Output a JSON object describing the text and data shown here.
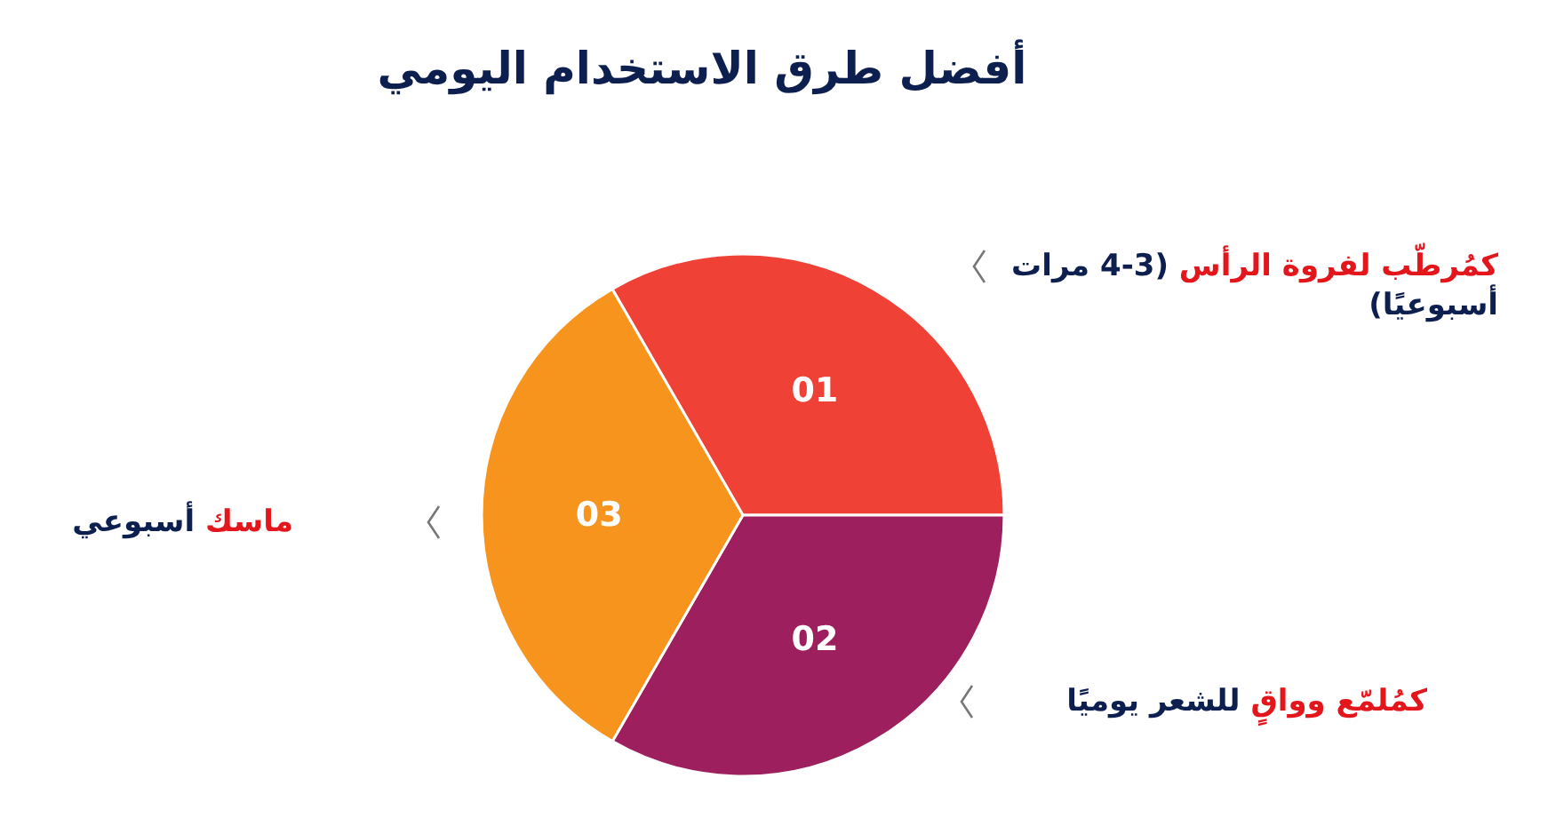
{
  "chart_data": {
    "type": "pie",
    "title": "أفضل طرق الاستخدام اليومي",
    "categories": [
      "01",
      "02",
      "03"
    ],
    "values": [
      33.33,
      33.33,
      33.34
    ],
    "colors": [
      "#ef4136",
      "#9e1f5e",
      "#f7941d"
    ],
    "annotations": [
      {
        "text": "كمُرطّب لفروة الرأس",
        "x": "01"
      },
      {
        "text": "(3-4 مرات أسبوعيًا)",
        "x": "01"
      },
      {
        "text": "كمُلمّع وواقٍ",
        "x": "02"
      },
      {
        "text": "للشعر يوميًا",
        "x": "02"
      },
      {
        "text": "ماسك",
        "x": "03"
      },
      {
        "text": "أسبوعي",
        "x": "03"
      }
    ]
  }
}
